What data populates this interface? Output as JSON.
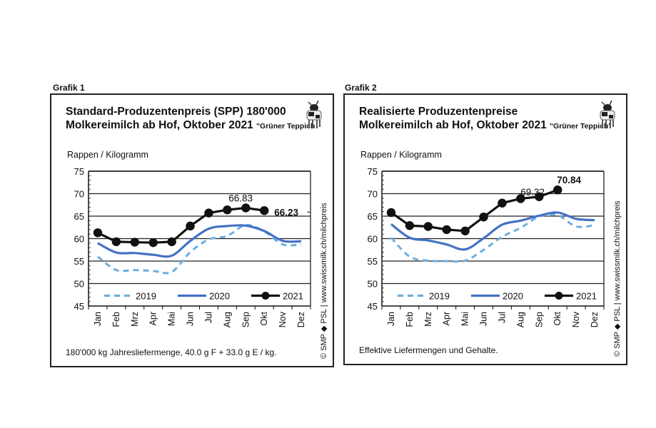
{
  "charts": [
    {
      "label": "Grafik 1",
      "title_line1": "Standard-Produzentenpreis (SPP) 180'000",
      "title_line2": "Molkereimilch ab Hof, Oktober 2021",
      "title_tag": "\"Grüner Teppich",
      "unit": "Rappen / Kilogramm",
      "note": "180'000 kg Jahresliefermenge, 40.0 g F + 33.0 g E / kg.",
      "credit": "© SMP ◆ PSL | www.swissmilk.ch/milchpreis",
      "icon": "cow-icon"
    },
    {
      "label": "Grafik 2",
      "title_line1": "Realisierte Produzentenpreise",
      "title_line2": "Molkereimilch ab Hof, Oktober 2021",
      "title_tag": "\"Grüner Teppich'",
      "unit": "Rappen / Kilogramm",
      "note": "Effektive Liefermengen und Gehalte.",
      "credit": "© SMP ◆ PSL | www.swissmilk.ch/milchpreis",
      "icon": "cow-icon"
    }
  ],
  "chart_data": [
    {
      "type": "line",
      "title": "Standard-Produzentenpreis (SPP) 180'000 Molkereimilch ab Hof, Oktober 2021",
      "xlabel": "",
      "ylabel": "Rappen / Kilogramm",
      "categories": [
        "Jan",
        "Feb",
        "Mrz",
        "Apr",
        "Mai",
        "Jun",
        "Jul",
        "Aug",
        "Sep",
        "Okt",
        "Nov",
        "Dez"
      ],
      "ylim": [
        45,
        75
      ],
      "yticks": [
        45,
        50,
        55,
        60,
        65,
        70,
        75
      ],
      "grid": true,
      "legend": "bottom",
      "series": [
        {
          "name": "2019",
          "style": "dashed",
          "color": "#6aaee0",
          "values": [
            56.0,
            53.0,
            53.0,
            52.8,
            52.6,
            57.0,
            59.8,
            60.6,
            63.0,
            61.6,
            58.7,
            58.7
          ]
        },
        {
          "name": "2020",
          "style": "solid",
          "color": "#4472c4",
          "values": [
            59.0,
            56.9,
            56.8,
            56.4,
            56.2,
            59.5,
            62.2,
            62.8,
            62.9,
            61.7,
            59.5,
            59.4
          ]
        },
        {
          "name": "2021",
          "style": "solid-markers",
          "color": "#111111",
          "values": [
            61.3,
            59.3,
            59.2,
            59.1,
            59.3,
            62.8,
            65.7,
            66.4,
            66.83,
            66.23,
            null,
            null
          ]
        }
      ],
      "annotations": [
        {
          "text": "66.83",
          "x": "Sep",
          "y": 66.83,
          "bold": false
        },
        {
          "text": "66.23",
          "x": "Okt",
          "y": 66.23,
          "bold": true
        }
      ]
    },
    {
      "type": "line",
      "title": "Realisierte Produzentenpreise Molkereimilch ab Hof, Oktober 2021",
      "xlabel": "",
      "ylabel": "Rappen / Kilogramm",
      "categories": [
        "Jan",
        "Feb",
        "Mrz",
        "Apr",
        "Mai",
        "Jun",
        "Jul",
        "Aug",
        "Sep",
        "Okt",
        "Nov",
        "Dez"
      ],
      "ylim": [
        45,
        75
      ],
      "yticks": [
        45,
        50,
        55,
        60,
        65,
        70,
        75
      ],
      "grid": true,
      "legend": "bottom",
      "series": [
        {
          "name": "2019",
          "style": "dashed",
          "color": "#6aaee0",
          "values": [
            60.2,
            56.0,
            55.1,
            55.0,
            55.1,
            57.5,
            60.4,
            62.4,
            64.9,
            65.2,
            62.7,
            63.0
          ]
        },
        {
          "name": "2020",
          "style": "solid",
          "color": "#4472c4",
          "values": [
            63.2,
            60.2,
            59.6,
            58.7,
            57.6,
            60.1,
            63.1,
            64.0,
            65.1,
            65.8,
            64.4,
            64.1
          ]
        },
        {
          "name": "2021",
          "style": "solid-markers",
          "color": "#111111",
          "values": [
            65.8,
            62.9,
            62.7,
            62.0,
            61.7,
            64.8,
            67.9,
            68.9,
            69.32,
            70.84,
            null,
            null
          ]
        }
      ],
      "annotations": [
        {
          "text": "69.32",
          "x": "Sep",
          "y": 69.32,
          "bold": false
        },
        {
          "text": "70.84",
          "x": "Okt",
          "y": 70.84,
          "bold": true
        }
      ]
    }
  ]
}
